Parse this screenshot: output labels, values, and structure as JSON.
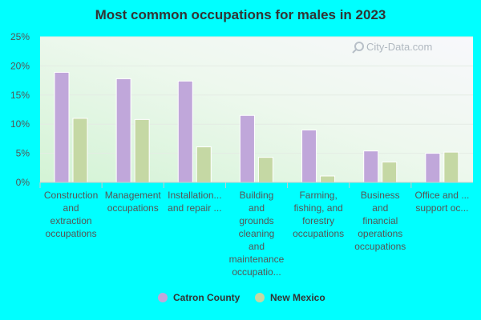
{
  "chart_data": {
    "type": "bar",
    "title": "Most common occupations for males in 2023",
    "categories": [
      [
        "Construction",
        "and",
        "extraction",
        "occupations"
      ],
      [
        "Management",
        "occupations"
      ],
      [
        "Installation...",
        "and repair ..."
      ],
      [
        "Building",
        "and",
        "grounds",
        "cleaning",
        "and",
        "maintenance",
        "occupatio..."
      ],
      [
        "Farming,",
        "fishing, and",
        "forestry",
        "occupations"
      ],
      [
        "Business",
        "and",
        "financial",
        "operations",
        "occupations"
      ],
      [
        "Office and ...",
        "support oc..."
      ]
    ],
    "series": [
      {
        "name": "Catron County",
        "color": "#c0a7da",
        "values": [
          18.9,
          17.8,
          17.4,
          11.5,
          9.0,
          5.4,
          5.0
        ]
      },
      {
        "name": "New Mexico",
        "color": "#c5d8a4",
        "values": [
          11.0,
          10.8,
          6.1,
          4.3,
          1.1,
          3.5,
          5.2
        ]
      }
    ],
    "yticks": [
      "0%",
      "5%",
      "10%",
      "15%",
      "20%",
      "25%"
    ],
    "ylim": [
      0,
      25
    ],
    "grid": true,
    "legend_position": "bottom"
  },
  "watermark": "City-Data.com"
}
